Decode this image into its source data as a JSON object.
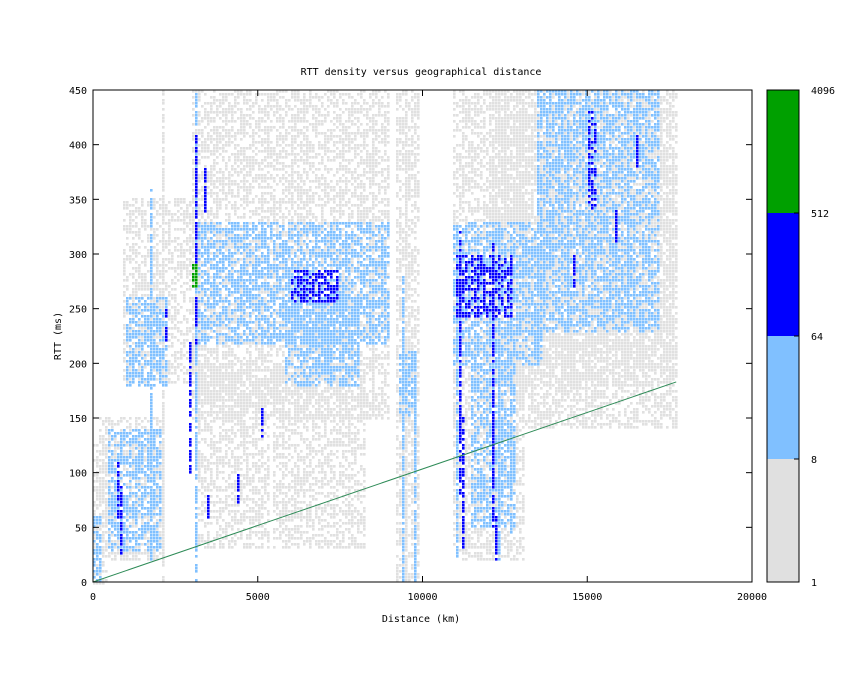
{
  "chart_data": {
    "type": "heatmap",
    "title": "RTT density versus geographical distance",
    "xlabel": "Distance (km)",
    "ylabel": "RTT (ms)",
    "xlim": [
      0,
      20000
    ],
    "ylim": [
      0,
      450
    ],
    "x_ticks": [
      "0",
      "5000",
      "10000",
      "15000",
      "20000"
    ],
    "y_ticks": [
      "0",
      "50",
      "100",
      "150",
      "200",
      "250",
      "300",
      "350",
      "400",
      "450"
    ],
    "colorbar": {
      "scale": "log",
      "ticks": [
        "1",
        "8",
        "64",
        "512",
        "4096"
      ],
      "bins": [
        {
          "from": 1,
          "to": 8,
          "color": "#e0e0e0"
        },
        {
          "from": 8,
          "to": 64,
          "color": "#80c0ff"
        },
        {
          "from": 64,
          "to": 512,
          "color": "#0000ff"
        },
        {
          "from": 512,
          "to": 4096,
          "color": "#00a000"
        }
      ]
    },
    "reference_line": {
      "color": "#2e8b57",
      "x": [
        0,
        17700
      ],
      "y": [
        0,
        183
      ]
    },
    "regions": [
      {
        "level": 1,
        "x": [
          0,
          400
        ],
        "y": [
          0,
          130
        ]
      },
      {
        "level": 1,
        "x": [
          200,
          2200
        ],
        "y": [
          20,
          150
        ]
      },
      {
        "level": 1,
        "x": [
          900,
          3200
        ],
        "y": [
          180,
          350
        ]
      },
      {
        "level": 1,
        "x": [
          3000,
          9000
        ],
        "y": [
          150,
          450
        ]
      },
      {
        "level": 1,
        "x": [
          3200,
          5300
        ],
        "y": [
          30,
          200
        ]
      },
      {
        "level": 1,
        "x": [
          5500,
          8300
        ],
        "y": [
          30,
          200
        ]
      },
      {
        "level": 1,
        "x": [
          9200,
          9900
        ],
        "y": [
          0,
          450
        ]
      },
      {
        "level": 1,
        "x": [
          10900,
          13000
        ],
        "y": [
          20,
          450
        ]
      },
      {
        "level": 1,
        "x": [
          12000,
          17600
        ],
        "y": [
          180,
          450
        ]
      },
      {
        "level": 1,
        "x": [
          12800,
          17700
        ],
        "y": [
          140,
          450
        ]
      },
      {
        "level": 2,
        "x": [
          0,
          250
        ],
        "y": [
          0,
          60
        ]
      },
      {
        "level": 2,
        "x": [
          500,
          2100
        ],
        "y": [
          30,
          140
        ]
      },
      {
        "level": 2,
        "x": [
          1000,
          2200
        ],
        "y": [
          180,
          260
        ]
      },
      {
        "level": 2,
        "x": [
          3100,
          9000
        ],
        "y": [
          220,
          330
        ]
      },
      {
        "level": 2,
        "x": [
          5800,
          8000
        ],
        "y": [
          180,
          260
        ]
      },
      {
        "level": 2,
        "x": [
          9300,
          9800
        ],
        "y": [
          150,
          210
        ]
      },
      {
        "level": 2,
        "x": [
          10900,
          13600
        ],
        "y": [
          200,
          330
        ]
      },
      {
        "level": 2,
        "x": [
          11500,
          12800
        ],
        "y": [
          50,
          200
        ]
      },
      {
        "level": 2,
        "x": [
          13500,
          17200
        ],
        "y": [
          230,
          450
        ]
      },
      {
        "level": 3,
        "x": [
          6000,
          7400
        ],
        "y": [
          255,
          285
        ]
      },
      {
        "level": 3,
        "x": [
          11000,
          12700
        ],
        "y": [
          245,
          300
        ]
      },
      {
        "level": 3,
        "x": [
          15000,
          15200
        ],
        "y": [
          340,
          430
        ]
      },
      {
        "level": 4,
        "x": [
          3050,
          3150
        ],
        "y": [
          270,
          290
        ]
      }
    ],
    "vertical_streaks": [
      {
        "level": 2,
        "x": 3100,
        "y": [
          0,
          450
        ]
      },
      {
        "level": 3,
        "x": 3130,
        "y": [
          220,
          410
        ]
      },
      {
        "level": 3,
        "x": 3350,
        "y": [
          340,
          380
        ]
      },
      {
        "level": 3,
        "x": 700,
        "y": [
          60,
          110
        ]
      },
      {
        "level": 3,
        "x": 780,
        "y": [
          20,
          90
        ]
      },
      {
        "level": 3,
        "x": 2200,
        "y": [
          220,
          250
        ]
      },
      {
        "level": 3,
        "x": 2900,
        "y": [
          100,
          220
        ]
      },
      {
        "level": 3,
        "x": 3500,
        "y": [
          60,
          80
        ]
      },
      {
        "level": 3,
        "x": 4400,
        "y": [
          70,
          100
        ]
      },
      {
        "level": 3,
        "x": 5100,
        "y": [
          130,
          160
        ]
      },
      {
        "level": 3,
        "x": 11100,
        "y": [
          80,
          320
        ]
      },
      {
        "level": 3,
        "x": 11200,
        "y": [
          30,
          150
        ]
      },
      {
        "level": 3,
        "x": 12100,
        "y": [
          50,
          310
        ]
      },
      {
        "level": 3,
        "x": 12200,
        "y": [
          20,
          60
        ]
      },
      {
        "level": 3,
        "x": 14600,
        "y": [
          270,
          300
        ]
      },
      {
        "level": 3,
        "x": 15800,
        "y": [
          310,
          340
        ]
      },
      {
        "level": 3,
        "x": 16500,
        "y": [
          380,
          410
        ]
      },
      {
        "level": 2,
        "x": 1700,
        "y": [
          20,
          360
        ]
      },
      {
        "level": 2,
        "x": 9400,
        "y": [
          0,
          280
        ]
      },
      {
        "level": 2,
        "x": 9700,
        "y": [
          0,
          200
        ]
      },
      {
        "level": 2,
        "x": 11000,
        "y": [
          20,
          320
        ]
      },
      {
        "level": 2,
        "x": 12300,
        "y": [
          20,
          330
        ]
      },
      {
        "level": 2,
        "x": 12700,
        "y": [
          40,
          300
        ]
      },
      {
        "level": 2,
        "x": 14400,
        "y": [
          230,
          420
        ]
      },
      {
        "level": 2,
        "x": 16200,
        "y": [
          240,
          420
        ]
      },
      {
        "level": 1,
        "x": 2100,
        "y": [
          0,
          450
        ]
      },
      {
        "level": 1,
        "x": 8500,
        "y": [
          150,
          450
        ]
      },
      {
        "level": 1,
        "x": 9500,
        "y": [
          0,
          450
        ]
      }
    ]
  }
}
